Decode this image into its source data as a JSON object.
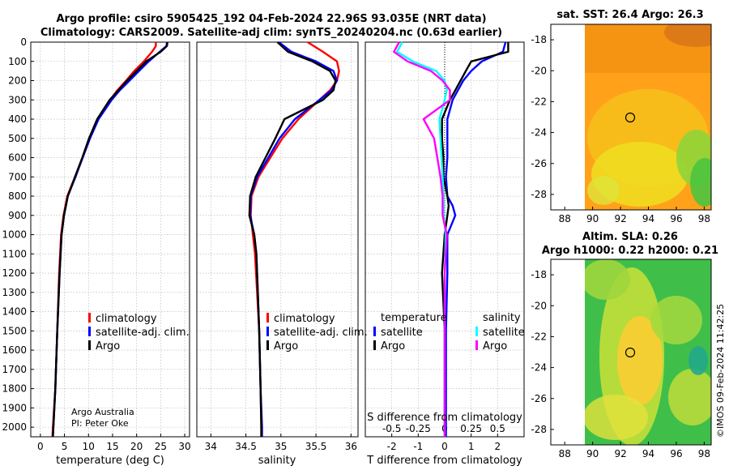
{
  "title": {
    "line1": "Argo profile: csiro 5905425_192 04-Feb-2024 22.96S 93.035E (NRT data)",
    "line2": "Climatology: CARS2009. Satellite-adj clim: synTS_20240204.nc (0.63d earlier)"
  },
  "credit": {
    "line1": "Argo Australia",
    "line2": "PI: Peter Oke"
  },
  "copyright": "©IMOS 09-Feb-2024 11:42:25",
  "colors": {
    "climatology": "#ff0000",
    "satellite": "#0000ff",
    "argo": "#000000",
    "sat_temp_diff": "#00e5ee",
    "argo_temp_diff": "#00ffff",
    "argo_sal_diff": "#ff00ff"
  },
  "chart_data": [
    {
      "type": "line",
      "name": "temperature",
      "xlabel": "temperature (deg C)",
      "ylabel": "",
      "xlim": [
        -2,
        31
      ],
      "ylim": [
        2050,
        0
      ],
      "xticks": [
        "0",
        "5",
        "10",
        "15",
        "20",
        "25",
        "30"
      ],
      "xtick_values": [
        0,
        5,
        10,
        15,
        20,
        25,
        30
      ],
      "yticks": [
        "0",
        "100",
        "200",
        "300",
        "400",
        "500",
        "600",
        "700",
        "800",
        "900",
        "1000",
        "1100",
        "1200",
        "1300",
        "1400",
        "1500",
        "1600",
        "1700",
        "1800",
        "1900",
        "2000"
      ],
      "ytick_values": [
        0,
        100,
        200,
        300,
        400,
        500,
        600,
        700,
        800,
        900,
        1000,
        1100,
        1200,
        1300,
        1400,
        1500,
        1600,
        1700,
        1800,
        1900,
        2000
      ],
      "grid": true,
      "legend": [
        "climatology",
        "satellite-adj. clim.",
        "Argo"
      ],
      "legend_position": "lower-right",
      "series": [
        {
          "name": "climatology",
          "color": "#ff0000",
          "depth": [
            0,
            20,
            50,
            100,
            150,
            200,
            250,
            300,
            400,
            500,
            600,
            700,
            800,
            900,
            1000,
            1200,
            1500,
            1800,
            2000,
            2050
          ],
          "values": [
            24.0,
            24.0,
            23.2,
            21.5,
            19.5,
            17.8,
            16.0,
            14.5,
            12.0,
            10.2,
            8.8,
            7.2,
            5.6,
            4.8,
            4.3,
            3.9,
            3.5,
            3.1,
            2.6,
            2.5
          ]
        },
        {
          "name": "satellite-adj. clim.",
          "color": "#0000ff",
          "depth": [
            0,
            20,
            50,
            100,
            150,
            200,
            250,
            300,
            400,
            500,
            600,
            700,
            800,
            900,
            1000,
            1200,
            1500,
            1800,
            2000,
            2050
          ],
          "values": [
            26.3,
            26.2,
            24.8,
            22.5,
            20.5,
            18.5,
            16.5,
            14.8,
            12.1,
            10.3,
            8.8,
            7.3,
            5.7,
            4.9,
            4.4,
            4.0,
            3.5,
            3.1,
            2.7,
            2.6
          ]
        },
        {
          "name": "Argo",
          "color": "#000000",
          "depth": [
            0,
            20,
            50,
            100,
            150,
            200,
            250,
            300,
            400,
            500,
            600,
            700,
            800,
            900,
            1000,
            1200,
            1500,
            1800,
            2000,
            2050
          ],
          "values": [
            26.4,
            26.3,
            25.0,
            22.0,
            20.0,
            18.0,
            16.2,
            14.4,
            11.8,
            10.1,
            8.7,
            7.2,
            5.7,
            4.9,
            4.4,
            4.0,
            3.5,
            3.1,
            2.7,
            2.6
          ]
        }
      ]
    },
    {
      "type": "line",
      "name": "salinity",
      "xlabel": "salinity",
      "xlim": [
        33.8,
        36.1
      ],
      "ylim": [
        2050,
        0
      ],
      "xticks": [
        "34",
        "34.5",
        "35",
        "35.5",
        "36"
      ],
      "xtick_values": [
        34,
        34.5,
        35,
        35.5,
        36
      ],
      "grid": true,
      "legend": [
        "climatology",
        "satellite-adj. clim.",
        "Argo"
      ],
      "legend_position": "lower-right",
      "series": [
        {
          "name": "climatology",
          "color": "#ff0000",
          "depth": [
            0,
            50,
            100,
            150,
            200,
            250,
            300,
            400,
            500,
            600,
            700,
            800,
            900,
            1000,
            1100,
            1300,
            1500,
            1800,
            2000,
            2050
          ],
          "values": [
            35.38,
            35.6,
            35.8,
            35.83,
            35.8,
            35.7,
            35.55,
            35.25,
            35.02,
            34.85,
            34.68,
            34.58,
            34.57,
            34.6,
            34.63,
            34.66,
            34.69,
            34.71,
            34.72,
            34.72
          ]
        },
        {
          "name": "satellite-adj. clim.",
          "color": "#0000ff",
          "depth": [
            0,
            50,
            100,
            150,
            200,
            250,
            300,
            400,
            500,
            600,
            700,
            800,
            900,
            1000,
            1100,
            1300,
            1500,
            1800,
            2000,
            2050
          ],
          "values": [
            34.97,
            35.15,
            35.5,
            35.75,
            35.8,
            35.72,
            35.55,
            35.2,
            34.98,
            34.82,
            34.66,
            34.57,
            34.56,
            34.62,
            34.65,
            34.67,
            34.69,
            34.71,
            34.73,
            34.73
          ]
        },
        {
          "name": "Argo",
          "color": "#000000",
          "depth": [
            0,
            50,
            100,
            150,
            200,
            250,
            300,
            400,
            500,
            600,
            700,
            800,
            900,
            1000,
            1100,
            1300,
            1500,
            1800,
            2000,
            2050
          ],
          "values": [
            34.95,
            35.1,
            35.45,
            35.7,
            35.78,
            35.75,
            35.6,
            35.05,
            34.92,
            34.78,
            34.64,
            34.56,
            34.55,
            34.62,
            34.65,
            34.67,
            34.69,
            34.71,
            34.72,
            34.72
          ]
        }
      ]
    },
    {
      "type": "line",
      "name": "differences",
      "xlabel": "T difference from climatology",
      "top_label": "S difference from climatology",
      "xlim": [
        -3,
        3
      ],
      "ylim": [
        2050,
        0
      ],
      "xticks": [
        "-2",
        "-1",
        "0",
        "1",
        "2"
      ],
      "xtick_values": [
        -2,
        -1,
        0,
        1,
        2
      ],
      "sticks": [
        "-0.5",
        "-0.25",
        "0",
        "0.25",
        "0.5"
      ],
      "stick_values": [
        -0.5,
        -0.25,
        0,
        0.25,
        0.5
      ],
      "grid": true,
      "legend": [
        "temperature",
        "satellite",
        "Argo",
        "salinity",
        "satellite",
        "Argo"
      ],
      "legend_position": "lower-center",
      "series": [
        {
          "name": "satellite T diff",
          "color": "#0000ff",
          "depth": [
            0,
            50,
            100,
            150,
            200,
            250,
            300,
            400,
            500,
            600,
            700,
            800,
            850,
            900,
            1000,
            1200,
            1500,
            1800,
            2000,
            2050
          ],
          "values": [
            2.3,
            2.2,
            1.4,
            1.0,
            0.7,
            0.5,
            0.3,
            0.1,
            0.1,
            0.1,
            0.05,
            0.1,
            0.3,
            0.4,
            0.1,
            0.1,
            0.05,
            0.05,
            0.05,
            0.05
          ]
        },
        {
          "name": "Argo T diff",
          "color": "#000000",
          "depth": [
            0,
            50,
            100,
            150,
            200,
            250,
            300,
            400,
            500,
            600,
            700,
            800,
            850,
            900,
            1000,
            1200,
            1500,
            1800,
            2000,
            2050
          ],
          "values": [
            2.4,
            2.4,
            1.0,
            0.8,
            0.6,
            0.4,
            0.2,
            -0.1,
            -0.1,
            -0.05,
            -0.05,
            0.1,
            0.15,
            0.1,
            0.0,
            -0.1,
            0.0,
            0.0,
            0.0,
            0.0
          ]
        },
        {
          "name": "satellite S diff",
          "color": "#00ffff",
          "depth": [
            0,
            50,
            100,
            150,
            200,
            250,
            300,
            400,
            500,
            600,
            700,
            800,
            900,
            1000,
            1200,
            1500,
            1800,
            2000,
            2050
          ],
          "values": [
            -0.4,
            -0.45,
            -0.3,
            -0.08,
            0.0,
            0.02,
            0.0,
            -0.05,
            -0.04,
            -0.03,
            -0.02,
            -0.01,
            -0.01,
            0.01,
            0.0,
            0.0,
            0.0,
            0.0,
            0.0
          ]
        },
        {
          "name": "Argo S diff",
          "color": "#ff00ff",
          "depth": [
            0,
            50,
            100,
            150,
            200,
            250,
            300,
            400,
            500,
            600,
            700,
            800,
            900,
            1000,
            1200,
            1500,
            1800,
            2000,
            2050
          ],
          "values": [
            -0.43,
            -0.48,
            -0.35,
            -0.13,
            -0.02,
            0.05,
            0.05,
            -0.2,
            -0.1,
            -0.07,
            -0.04,
            -0.02,
            -0.02,
            0.02,
            0.0,
            0.0,
            0.0,
            0.0,
            0.0
          ]
        }
      ]
    },
    {
      "type": "heatmap",
      "name": "sst-map",
      "title": "sat. SST: 26.4 Argo: 26.3",
      "xticks": [
        "88",
        "90",
        "92",
        "94",
        "96",
        "98"
      ],
      "yticks": [
        "-18",
        "-20",
        "-22",
        "-24",
        "-26",
        "-28"
      ],
      "xlim": [
        87,
        98.5
      ],
      "ylim": [
        -29,
        -17
      ]
    },
    {
      "type": "heatmap",
      "name": "sla-map",
      "title_line1": "Altim. SLA: 0.26",
      "title_line2": "Argo h1000: 0.22 h2000: 0.21",
      "xticks": [
        "88",
        "90",
        "92",
        "94",
        "96",
        "98"
      ],
      "yticks": [
        "-18",
        "-20",
        "-22",
        "-24",
        "-26",
        "-28"
      ],
      "xlim": [
        87,
        98.5
      ],
      "ylim": [
        -29,
        -17
      ]
    }
  ]
}
